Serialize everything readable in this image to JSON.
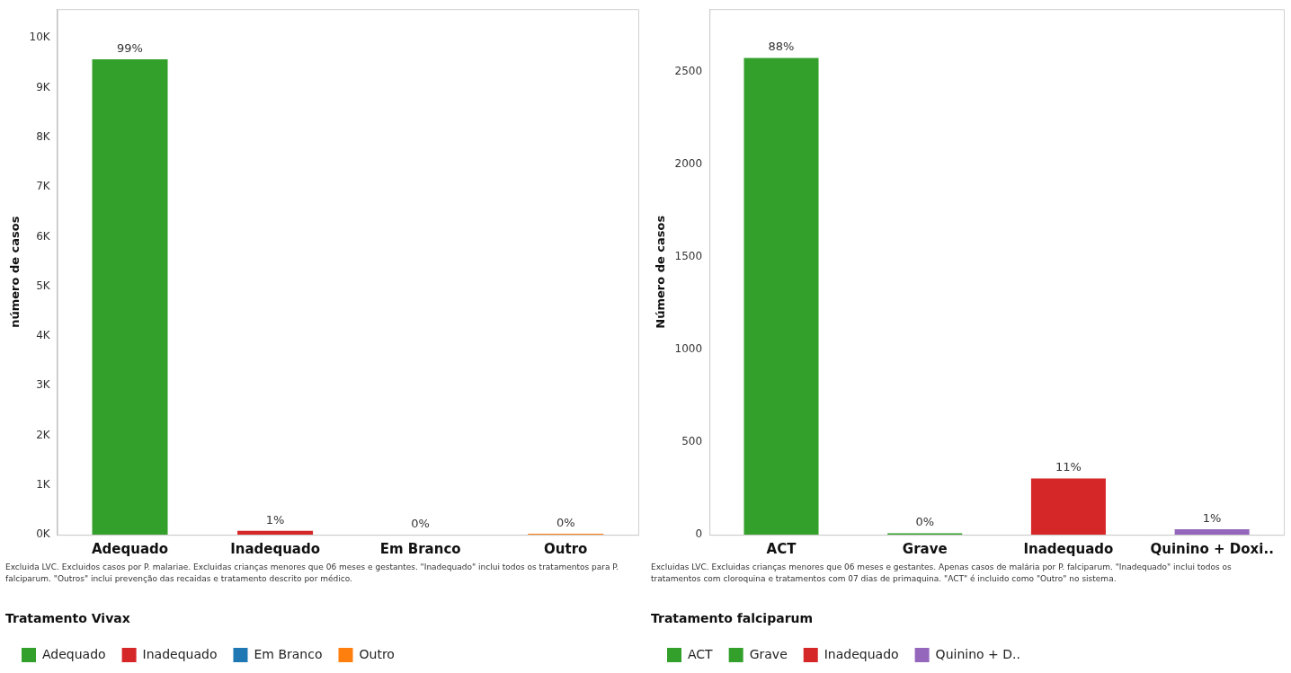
{
  "chart_data": [
    {
      "type": "bar",
      "ylabel": "número de casos",
      "legend_title": "Tratamento Vivax",
      "legend": "bottom",
      "categories": [
        "Adequado",
        "Inadequado",
        "Em Branco",
        "Outro"
      ],
      "series": [
        {
          "name": "Adequado",
          "color": "#33a02c",
          "values": [
            9570,
            null,
            null,
            null
          ]
        },
        {
          "name": "Inadequado",
          "color": "#d62728",
          "values": [
            null,
            80,
            null,
            null
          ]
        },
        {
          "name": "Em Branco",
          "color": "#1f77b4",
          "values": [
            null,
            null,
            0,
            null
          ]
        },
        {
          "name": "Outro",
          "color": "#ff7f0e",
          "values": [
            null,
            null,
            null,
            20
          ]
        }
      ],
      "ylim": [
        0,
        10580
      ],
      "yticks": [
        {
          "value": 0,
          "label": "0K"
        },
        {
          "value": 1000,
          "label": "1K"
        },
        {
          "value": 2000,
          "label": "2K"
        },
        {
          "value": 3000,
          "label": "3K"
        },
        {
          "value": 4000,
          "label": "4K"
        },
        {
          "value": 5000,
          "label": "5K"
        },
        {
          "value": 6000,
          "label": "6K"
        },
        {
          "value": 7000,
          "label": "7K"
        },
        {
          "value": 8000,
          "label": "8K"
        },
        {
          "value": 9000,
          "label": "9K"
        },
        {
          "value": 10000,
          "label": "10K"
        }
      ],
      "grid": false,
      "annotations": [
        {
          "text": "99%",
          "x": "Adequado",
          "y": 9570
        },
        {
          "text": "1%",
          "x": "Inadequado",
          "y": 80
        },
        {
          "text": "0%",
          "x": "Em Branco",
          "y": 0
        },
        {
          "text": "0%",
          "x": "Outro",
          "y": 20
        },
        "Excluida LVC. Excluidos casos por P. malariae. Excluidas crianças menores que 06 meses e gestantes. \"Inadequado\" inclui todos os tratamentos para P. falciparum. \"Outros\" inclui prevenção das recaidas e tratamento descrito por médico."
      ]
    },
    {
      "type": "bar",
      "ylabel": "Número de casos",
      "legend_title": "Tratamento falciparum",
      "legend": "bottom",
      "categories": [
        "ACT",
        "Grave",
        "Inadequado",
        "Quinino + Doxi.."
      ],
      "series": [
        {
          "name": "ACT",
          "color": "#33a02c",
          "values": [
            2576,
            null,
            null,
            null
          ]
        },
        {
          "name": "Grave",
          "color": "#33a02c",
          "values": [
            null,
            8,
            null,
            null
          ]
        },
        {
          "name": "Inadequado",
          "color": "#d62728",
          "values": [
            null,
            null,
            304,
            null
          ]
        },
        {
          "name": "Quinino + D..",
          "color": "#9467bd",
          "values": [
            null,
            null,
            null,
            30
          ]
        }
      ],
      "ylim": [
        0,
        2840
      ],
      "yticks": [
        0,
        500,
        1000,
        1500,
        2000,
        2500
      ],
      "grid": false,
      "annotations": [
        {
          "text": "88%",
          "x": "ACT",
          "y": 2576
        },
        {
          "text": "0%",
          "x": "Grave",
          "y": 8
        },
        {
          "text": "11%",
          "x": "Inadequado",
          "y": 304
        },
        {
          "text": "1%",
          "x": "Quinino + Doxi..",
          "y": 30
        },
        "Excluidas LVC. Excluidas crianças menores que 06 meses e gestantes. Apenas casos de malária por P. falciparum. \"Inadequado\" inclui todos os tratamentos com cloroquina e tratamentos com 07 dias de primaquina. \"ACT\" é incluido como \"Outro\" no sistema."
      ]
    }
  ]
}
